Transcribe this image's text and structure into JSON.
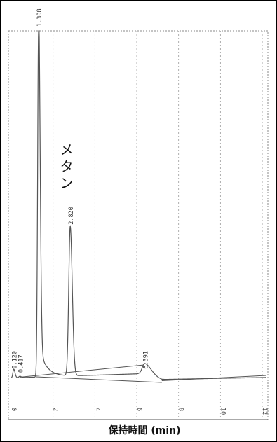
{
  "chart_data": {
    "type": "line",
    "title": "",
    "xlabel": "保持時間 (min)",
    "ylabel": "",
    "xlim": [
      0,
      12.2
    ],
    "ylim": [
      -1.5,
      100
    ],
    "x_ticks": [
      0,
      2,
      4,
      6,
      8,
      10,
      12
    ],
    "x_tick_labels": [
      "0",
      "2",
      "4",
      "6",
      "8",
      "10",
      "12"
    ],
    "grid": true,
    "annotation": {
      "text": "メタン",
      "x": 2.82
    },
    "peaks": [
      {
        "rt": 0.12,
        "label": "0.120",
        "height": 1.5
      },
      {
        "rt": 0.417,
        "label": "0.417",
        "height": 0.4
      },
      {
        "rt": 1.308,
        "label": "1.308",
        "height": 100
      },
      {
        "rt": 2.82,
        "label": "2.820",
        "height": 43
      },
      {
        "rt": 6.391,
        "label": "6.391",
        "height": 1.5
      }
    ],
    "baseline_segments": [
      {
        "x": [
          0.4,
          6.3
        ],
        "y": [
          0.3,
          3.8
        ]
      },
      {
        "x": [
          1.2,
          7.2
        ],
        "y": [
          0.4,
          -1.2
        ]
      },
      {
        "x": [
          7.2,
          12.2
        ],
        "y": [
          -0.7,
          0.8
        ]
      }
    ]
  }
}
